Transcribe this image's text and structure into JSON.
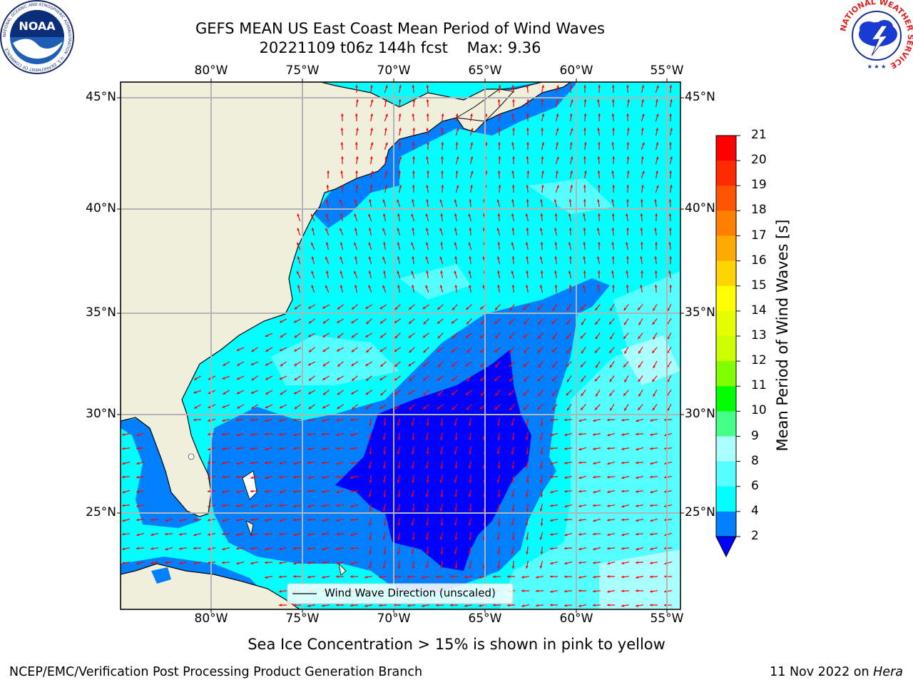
{
  "header": {
    "title_line1": "GEFS MEAN US East Coast Mean Period of Wind Waves",
    "title_line2": "20221109 t06z 144h fcst    Max: 9.36",
    "noaa_text": "NOAA",
    "noaa_ring": "NATIONAL OCEANIC AND ATMOSPHERIC ADMINISTRATION · U.S. DEPARTMENT OF COMMERCE",
    "nws_ring": "NATIONAL WEATHER SERVICE"
  },
  "map": {
    "lon_ticks": [
      "80°W",
      "75°W",
      "70°W",
      "65°W",
      "60°W",
      "55°W"
    ],
    "lat_ticks": [
      "45°N",
      "40°N",
      "35°N",
      "30°N",
      "25°N"
    ],
    "legend_label": "Wind Wave Direction (unscaled)",
    "colors": {
      "land": "#efefdc",
      "coast": "#000000",
      "grid": "#b4b4b4",
      "arrow": "#ff0000"
    }
  },
  "colorbar": {
    "label": "Mean Period of Wind Waves [s]",
    "ticks": [
      "21",
      "20",
      "19",
      "18",
      "17",
      "16",
      "15",
      "14",
      "13",
      "12",
      "11",
      "10",
      "9",
      "8",
      "6",
      "4",
      "2"
    ],
    "colors": [
      "#ff0000",
      "#ff2a00",
      "#ff5500",
      "#ff8000",
      "#ffaa00",
      "#ffd400",
      "#ffff00",
      "#e6ff00",
      "#ccff00",
      "#80ff00",
      "#00ff00",
      "#44ff88",
      "#aaffff",
      "#55ffff",
      "#00ffff",
      "#0080ff"
    ],
    "underflow_color": "#0000ff"
  },
  "subtitle": "Sea Ice Concentration > 15% is shown in pink to yellow",
  "footer": {
    "left": "NCEP/EMC/Verification Post Processing Product Generation Branch",
    "date": "11 Nov 2022 on ",
    "machine": "Hera"
  }
}
